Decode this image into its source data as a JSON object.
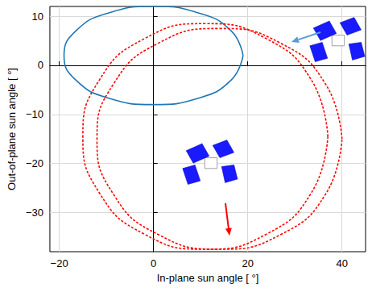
{
  "chart_data": {
    "type": "line",
    "x_label": "In-plane sun angle [ °]",
    "y_label": "Out-of-plane sun angle [ °]",
    "xlim": [
      -22,
      45
    ],
    "xticks": [
      -20,
      0,
      20,
      40
    ],
    "ylim": [
      -38,
      12
    ],
    "yticks": [
      -30,
      -20,
      -10,
      0,
      10
    ],
    "grid": true,
    "series": [
      {
        "color": "#1f77b4",
        "line_style": "solid",
        "values": [
          [
            19,
            2
          ],
          [
            16.5,
            7
          ],
          [
            9.5,
            10.7
          ],
          [
            0,
            12
          ],
          [
            -9.5,
            10.7
          ],
          [
            -16.5,
            7
          ],
          [
            -19,
            2
          ],
          [
            -16.5,
            -3
          ],
          [
            -9.5,
            -6.7
          ],
          [
            0,
            -8
          ],
          [
            9.5,
            -6.7
          ],
          [
            16.5,
            -3
          ],
          [
            19,
            2
          ]
        ]
      },
      {
        "color": "#ff0000",
        "line_style": "dotted",
        "values": [
          [
            37,
            -14.5
          ],
          [
            33.5,
            -3
          ],
          [
            24,
            5.4
          ],
          [
            11,
            8.5
          ],
          [
            -2,
            5.4
          ],
          [
            -11.5,
            -3
          ],
          [
            -15,
            -14.5
          ],
          [
            -11.5,
            -26
          ],
          [
            -2,
            -34.4
          ],
          [
            11,
            -37.5
          ],
          [
            24,
            -34.4
          ],
          [
            33.5,
            -26
          ],
          [
            37,
            -14.5
          ]
        ]
      },
      {
        "color": "#ff0000",
        "line_style": "dotted",
        "values": [
          [
            40,
            -15
          ],
          [
            36.5,
            -3.8
          ],
          [
            27,
            4.5
          ],
          [
            14,
            7.5
          ],
          [
            1,
            4.5
          ],
          [
            -8.5,
            -3.8
          ],
          [
            -12,
            -15
          ],
          [
            -8.5,
            -26.3
          ],
          [
            1,
            -34.5
          ],
          [
            14,
            -37.5
          ],
          [
            27,
            -34.5
          ],
          [
            36.5,
            -26.3
          ],
          [
            40,
            -15
          ]
        ]
      }
    ]
  }
}
